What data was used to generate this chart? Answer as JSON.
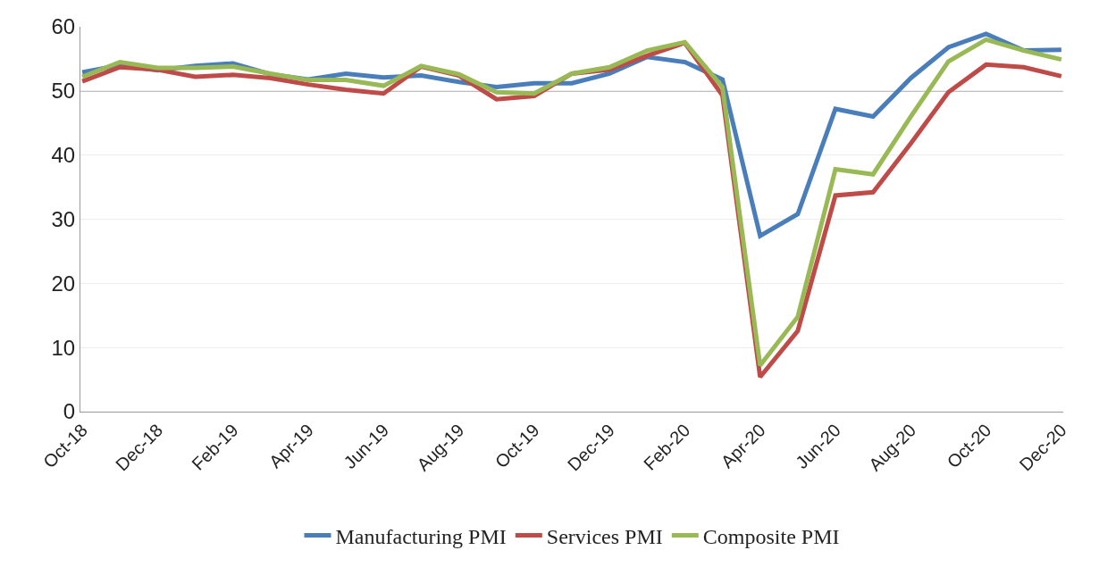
{
  "chart_data": {
    "type": "line",
    "categories": [
      "Oct-18",
      null,
      "Dec-18",
      null,
      "Feb-19",
      null,
      "Apr-19",
      null,
      "Jun-19",
      null,
      "Aug-19",
      null,
      "Oct-19",
      null,
      "Dec-19",
      null,
      "Feb-20",
      null,
      "Apr-20",
      null,
      "Jun-20",
      null,
      "Aug-20",
      null,
      "Oct-20",
      null,
      "Dec-20"
    ],
    "series": [
      {
        "name": "Manufacturing PMI",
        "color": "#4a7ebb",
        "values": [
          52.9,
          54.0,
          53.2,
          53.9,
          54.3,
          52.6,
          51.8,
          52.7,
          52.1,
          52.4,
          51.4,
          50.6,
          51.2,
          51.2,
          52.7,
          55.3,
          54.5,
          51.8,
          27.4,
          30.8,
          47.2,
          46.0,
          52.0,
          56.8,
          58.9,
          56.3,
          56.4
        ]
      },
      {
        "name": "Services PMI",
        "color": "#be4b48",
        "values": [
          51.5,
          53.7,
          53.3,
          52.2,
          52.5,
          52.0,
          51.0,
          50.2,
          49.6,
          53.8,
          52.4,
          48.7,
          49.2,
          52.7,
          53.3,
          55.5,
          57.5,
          49.3,
          5.4,
          12.6,
          33.7,
          34.2,
          41.8,
          49.8,
          54.1,
          53.7,
          52.3
        ]
      },
      {
        "name": "Composite PMI",
        "color": "#98b954",
        "values": [
          52.2,
          54.5,
          53.6,
          53.6,
          53.8,
          52.7,
          51.7,
          51.7,
          50.8,
          53.9,
          52.6,
          49.8,
          49.6,
          52.7,
          53.7,
          56.3,
          57.6,
          50.6,
          7.2,
          14.8,
          37.8,
          37.0,
          46.0,
          54.6,
          58.0,
          56.3,
          54.9
        ]
      }
    ],
    "ylim": [
      0,
      60
    ],
    "yticks": [
      0,
      10,
      20,
      30,
      40,
      50,
      60
    ],
    "grid": "y",
    "legend": "bottom",
    "marker": "none",
    "line_style": "solid",
    "ref_lines": [
      {
        "axis": "y",
        "value": 50,
        "color": "#808080"
      }
    ]
  }
}
